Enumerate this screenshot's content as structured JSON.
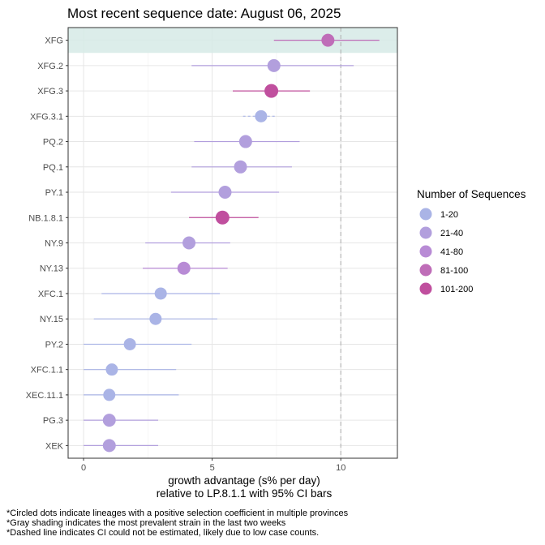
{
  "chart_data": {
    "type": "scatter",
    "title": "Most recent sequence date: August 06, 2025",
    "xlabel_line1": "growth advantage (s% per day)",
    "xlabel_line2": "relative to  LP.8.1.1  with 95% CI bars",
    "xlim": [
      -0.6,
      12.2
    ],
    "xticks": [
      0,
      5,
      10
    ],
    "xtick_labels": [
      "0",
      "5",
      "10"
    ],
    "reference_line_x": 10,
    "grid": true,
    "highlighted_lineage": "XFG",
    "legend_title": "Number of Sequences",
    "legend_position": "right",
    "legend": [
      {
        "label": "1-20",
        "color": "#aab4e6"
      },
      {
        "label": "21-40",
        "color": "#b29fdd"
      },
      {
        "label": "41-80",
        "color": "#b88bd5"
      },
      {
        "label": "81-100",
        "color": "#bf6db8"
      },
      {
        "label": "101-200",
        "color": "#c04f9e"
      }
    ],
    "points": [
      {
        "lineage": "XFG",
        "estimate": 9.5,
        "ci_low": 7.4,
        "ci_high": 11.5,
        "bin": "81-100",
        "ci_dashed": false
      },
      {
        "lineage": "XFG.2",
        "estimate": 7.4,
        "ci_low": 4.2,
        "ci_high": 10.5,
        "bin": "21-40",
        "ci_dashed": false
      },
      {
        "lineage": "XFG.3",
        "estimate": 7.3,
        "ci_low": 5.8,
        "ci_high": 8.8,
        "bin": "101-200",
        "ci_dashed": false
      },
      {
        "lineage": "XFG.3.1",
        "estimate": 6.9,
        "ci_low": 6.2,
        "ci_high": 7.5,
        "bin": "1-20",
        "ci_dashed": true
      },
      {
        "lineage": "PQ.2",
        "estimate": 6.3,
        "ci_low": 4.3,
        "ci_high": 8.4,
        "bin": "21-40",
        "ci_dashed": false
      },
      {
        "lineage": "PQ.1",
        "estimate": 6.1,
        "ci_low": 4.2,
        "ci_high": 8.1,
        "bin": "21-40",
        "ci_dashed": false
      },
      {
        "lineage": "PY.1",
        "estimate": 5.5,
        "ci_low": 3.4,
        "ci_high": 7.6,
        "bin": "21-40",
        "ci_dashed": false
      },
      {
        "lineage": "NB.1.8.1",
        "estimate": 5.4,
        "ci_low": 4.1,
        "ci_high": 6.8,
        "bin": "101-200",
        "ci_dashed": false
      },
      {
        "lineage": "NY.9",
        "estimate": 4.1,
        "ci_low": 2.4,
        "ci_high": 5.7,
        "bin": "21-40",
        "ci_dashed": false
      },
      {
        "lineage": "NY.13",
        "estimate": 3.9,
        "ci_low": 2.3,
        "ci_high": 5.6,
        "bin": "41-80",
        "ci_dashed": false
      },
      {
        "lineage": "XFC.1",
        "estimate": 3.0,
        "ci_low": 0.7,
        "ci_high": 5.3,
        "bin": "1-20",
        "ci_dashed": false
      },
      {
        "lineage": "NY.15",
        "estimate": 2.8,
        "ci_low": 0.4,
        "ci_high": 5.2,
        "bin": "1-20",
        "ci_dashed": false
      },
      {
        "lineage": "PY.2",
        "estimate": 1.8,
        "ci_low": 0.0,
        "ci_high": 4.2,
        "bin": "1-20",
        "ci_dashed": false
      },
      {
        "lineage": "XFC.1.1",
        "estimate": 1.1,
        "ci_low": 0.0,
        "ci_high": 3.6,
        "bin": "1-20",
        "ci_dashed": false
      },
      {
        "lineage": "XEC.11.1",
        "estimate": 1.0,
        "ci_low": 0.0,
        "ci_high": 3.7,
        "bin": "1-20",
        "ci_dashed": false
      },
      {
        "lineage": "PG.3",
        "estimate": 1.0,
        "ci_low": 0.0,
        "ci_high": 2.9,
        "bin": "21-40",
        "ci_dashed": false
      },
      {
        "lineage": "XEK",
        "estimate": 1.0,
        "ci_low": 0.0,
        "ci_high": 2.9,
        "bin": "21-40",
        "ci_dashed": false
      }
    ]
  },
  "footnotes": [
    "*Circled dots indicate lineages with a positive selection coefficient in multiple provinces",
    "*Gray shading indicates the most prevalent strain in the last two weeks",
    "*Dashed line indicates CI could not be estimated, likely due to low case counts."
  ]
}
